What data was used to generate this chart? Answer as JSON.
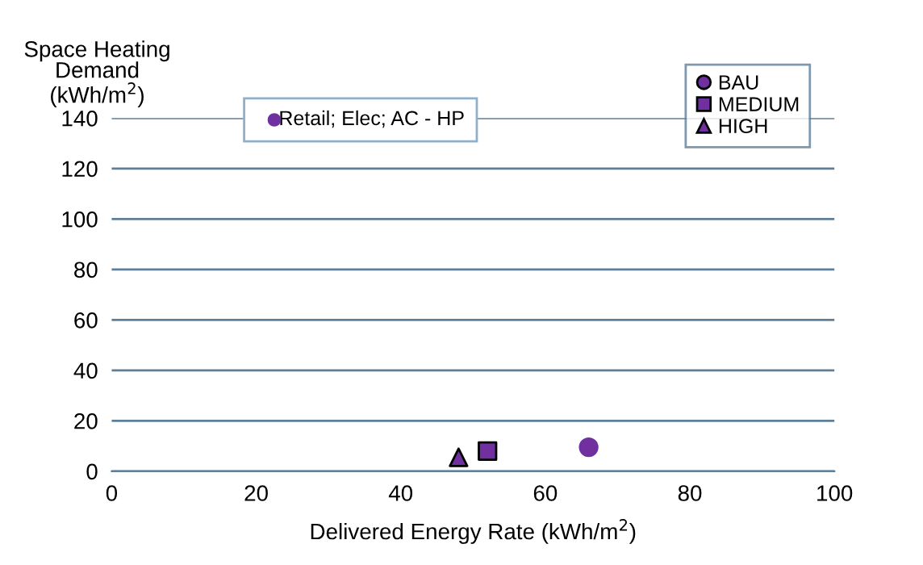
{
  "chart_data": {
    "type": "scatter",
    "xlabel": "Delivered Energy Rate (kWh/m$^{2}$)",
    "ylabel": "Space Heating\nDemand\n(kWh/m$^{2}$)",
    "series": [
      {
        "name": "BAU",
        "color": "#7030a0",
        "marker": "circle",
        "x": [
          66
        ],
        "values": [
          9.5
        ]
      },
      {
        "name": "MEDIUM",
        "color": "#7030a0",
        "marker": "square",
        "x": [
          52
        ],
        "values": [
          8
        ]
      },
      {
        "name": "HIGH",
        "color": "#7030a0",
        "marker": "triangle",
        "x": [
          48
        ],
        "values": [
          5.5
        ]
      }
    ],
    "annotations": [
      "Retail; Elec; AC - HP"
    ],
    "xlim": [
      0,
      100
    ],
    "xticks": [
      0,
      20,
      40,
      60,
      80,
      100
    ],
    "ylim": [
      0,
      140
    ],
    "yticks": [
      0,
      20,
      40,
      60,
      80,
      100,
      120,
      140
    ],
    "grid": "y",
    "legend": "top right"
  }
}
